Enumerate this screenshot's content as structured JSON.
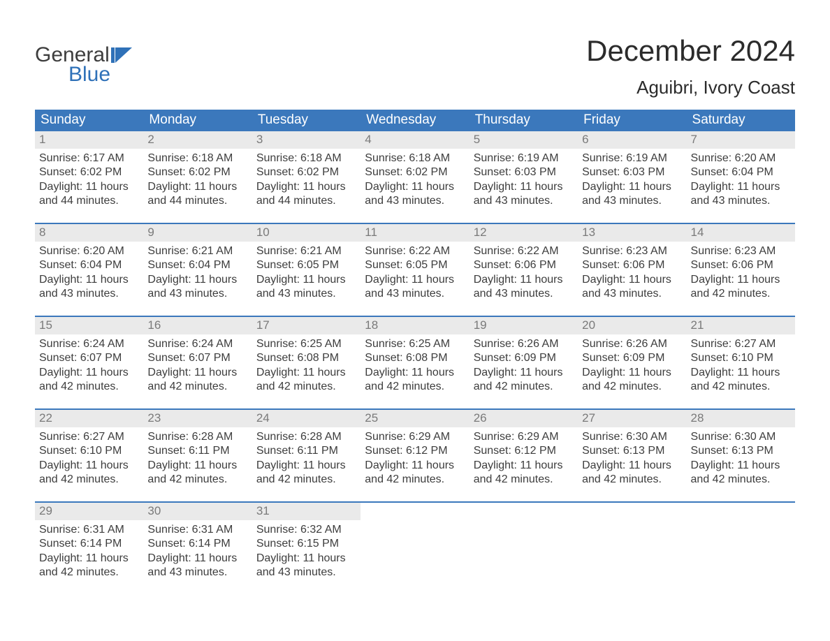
{
  "brand": {
    "line1": "General",
    "line2": "Blue",
    "logo_color": "#2f71b8"
  },
  "header": {
    "month_title": "December 2024",
    "location": "Aguibri, Ivory Coast"
  },
  "colors": {
    "header_bg": "#3b78bc",
    "header_text": "#ffffff",
    "daynum_bg": "#eaeaea",
    "daynum_text": "#7a7a7a",
    "body_text": "#3d3d3d",
    "page_bg": "#ffffff",
    "week_rule": "#3b78bc"
  },
  "typography": {
    "month_title_fontsize": 42,
    "location_fontsize": 26,
    "weekday_fontsize": 19,
    "daynum_fontsize": 17,
    "body_fontsize": 16,
    "logo_fontsize": 30
  },
  "weekdays": [
    "Sunday",
    "Monday",
    "Tuesday",
    "Wednesday",
    "Thursday",
    "Friday",
    "Saturday"
  ],
  "labels": {
    "sunrise": "Sunrise: ",
    "sunset": "Sunset: ",
    "daylight": "Daylight: "
  },
  "weeks": [
    [
      {
        "n": "1",
        "sunrise": "6:17 AM",
        "sunset": "6:02 PM",
        "daylight": "11 hours and 44 minutes."
      },
      {
        "n": "2",
        "sunrise": "6:18 AM",
        "sunset": "6:02 PM",
        "daylight": "11 hours and 44 minutes."
      },
      {
        "n": "3",
        "sunrise": "6:18 AM",
        "sunset": "6:02 PM",
        "daylight": "11 hours and 44 minutes."
      },
      {
        "n": "4",
        "sunrise": "6:18 AM",
        "sunset": "6:02 PM",
        "daylight": "11 hours and 43 minutes."
      },
      {
        "n": "5",
        "sunrise": "6:19 AM",
        "sunset": "6:03 PM",
        "daylight": "11 hours and 43 minutes."
      },
      {
        "n": "6",
        "sunrise": "6:19 AM",
        "sunset": "6:03 PM",
        "daylight": "11 hours and 43 minutes."
      },
      {
        "n": "7",
        "sunrise": "6:20 AM",
        "sunset": "6:04 PM",
        "daylight": "11 hours and 43 minutes."
      }
    ],
    [
      {
        "n": "8",
        "sunrise": "6:20 AM",
        "sunset": "6:04 PM",
        "daylight": "11 hours and 43 minutes."
      },
      {
        "n": "9",
        "sunrise": "6:21 AM",
        "sunset": "6:04 PM",
        "daylight": "11 hours and 43 minutes."
      },
      {
        "n": "10",
        "sunrise": "6:21 AM",
        "sunset": "6:05 PM",
        "daylight": "11 hours and 43 minutes."
      },
      {
        "n": "11",
        "sunrise": "6:22 AM",
        "sunset": "6:05 PM",
        "daylight": "11 hours and 43 minutes."
      },
      {
        "n": "12",
        "sunrise": "6:22 AM",
        "sunset": "6:06 PM",
        "daylight": "11 hours and 43 minutes."
      },
      {
        "n": "13",
        "sunrise": "6:23 AM",
        "sunset": "6:06 PM",
        "daylight": "11 hours and 43 minutes."
      },
      {
        "n": "14",
        "sunrise": "6:23 AM",
        "sunset": "6:06 PM",
        "daylight": "11 hours and 42 minutes."
      }
    ],
    [
      {
        "n": "15",
        "sunrise": "6:24 AM",
        "sunset": "6:07 PM",
        "daylight": "11 hours and 42 minutes."
      },
      {
        "n": "16",
        "sunrise": "6:24 AM",
        "sunset": "6:07 PM",
        "daylight": "11 hours and 42 minutes."
      },
      {
        "n": "17",
        "sunrise": "6:25 AM",
        "sunset": "6:08 PM",
        "daylight": "11 hours and 42 minutes."
      },
      {
        "n": "18",
        "sunrise": "6:25 AM",
        "sunset": "6:08 PM",
        "daylight": "11 hours and 42 minutes."
      },
      {
        "n": "19",
        "sunrise": "6:26 AM",
        "sunset": "6:09 PM",
        "daylight": "11 hours and 42 minutes."
      },
      {
        "n": "20",
        "sunrise": "6:26 AM",
        "sunset": "6:09 PM",
        "daylight": "11 hours and 42 minutes."
      },
      {
        "n": "21",
        "sunrise": "6:27 AM",
        "sunset": "6:10 PM",
        "daylight": "11 hours and 42 minutes."
      }
    ],
    [
      {
        "n": "22",
        "sunrise": "6:27 AM",
        "sunset": "6:10 PM",
        "daylight": "11 hours and 42 minutes."
      },
      {
        "n": "23",
        "sunrise": "6:28 AM",
        "sunset": "6:11 PM",
        "daylight": "11 hours and 42 minutes."
      },
      {
        "n": "24",
        "sunrise": "6:28 AM",
        "sunset": "6:11 PM",
        "daylight": "11 hours and 42 minutes."
      },
      {
        "n": "25",
        "sunrise": "6:29 AM",
        "sunset": "6:12 PM",
        "daylight": "11 hours and 42 minutes."
      },
      {
        "n": "26",
        "sunrise": "6:29 AM",
        "sunset": "6:12 PM",
        "daylight": "11 hours and 42 minutes."
      },
      {
        "n": "27",
        "sunrise": "6:30 AM",
        "sunset": "6:13 PM",
        "daylight": "11 hours and 42 minutes."
      },
      {
        "n": "28",
        "sunrise": "6:30 AM",
        "sunset": "6:13 PM",
        "daylight": "11 hours and 42 minutes."
      }
    ],
    [
      {
        "n": "29",
        "sunrise": "6:31 AM",
        "sunset": "6:14 PM",
        "daylight": "11 hours and 42 minutes."
      },
      {
        "n": "30",
        "sunrise": "6:31 AM",
        "sunset": "6:14 PM",
        "daylight": "11 hours and 43 minutes."
      },
      {
        "n": "31",
        "sunrise": "6:32 AM",
        "sunset": "6:15 PM",
        "daylight": "11 hours and 43 minutes."
      },
      null,
      null,
      null,
      null
    ]
  ]
}
